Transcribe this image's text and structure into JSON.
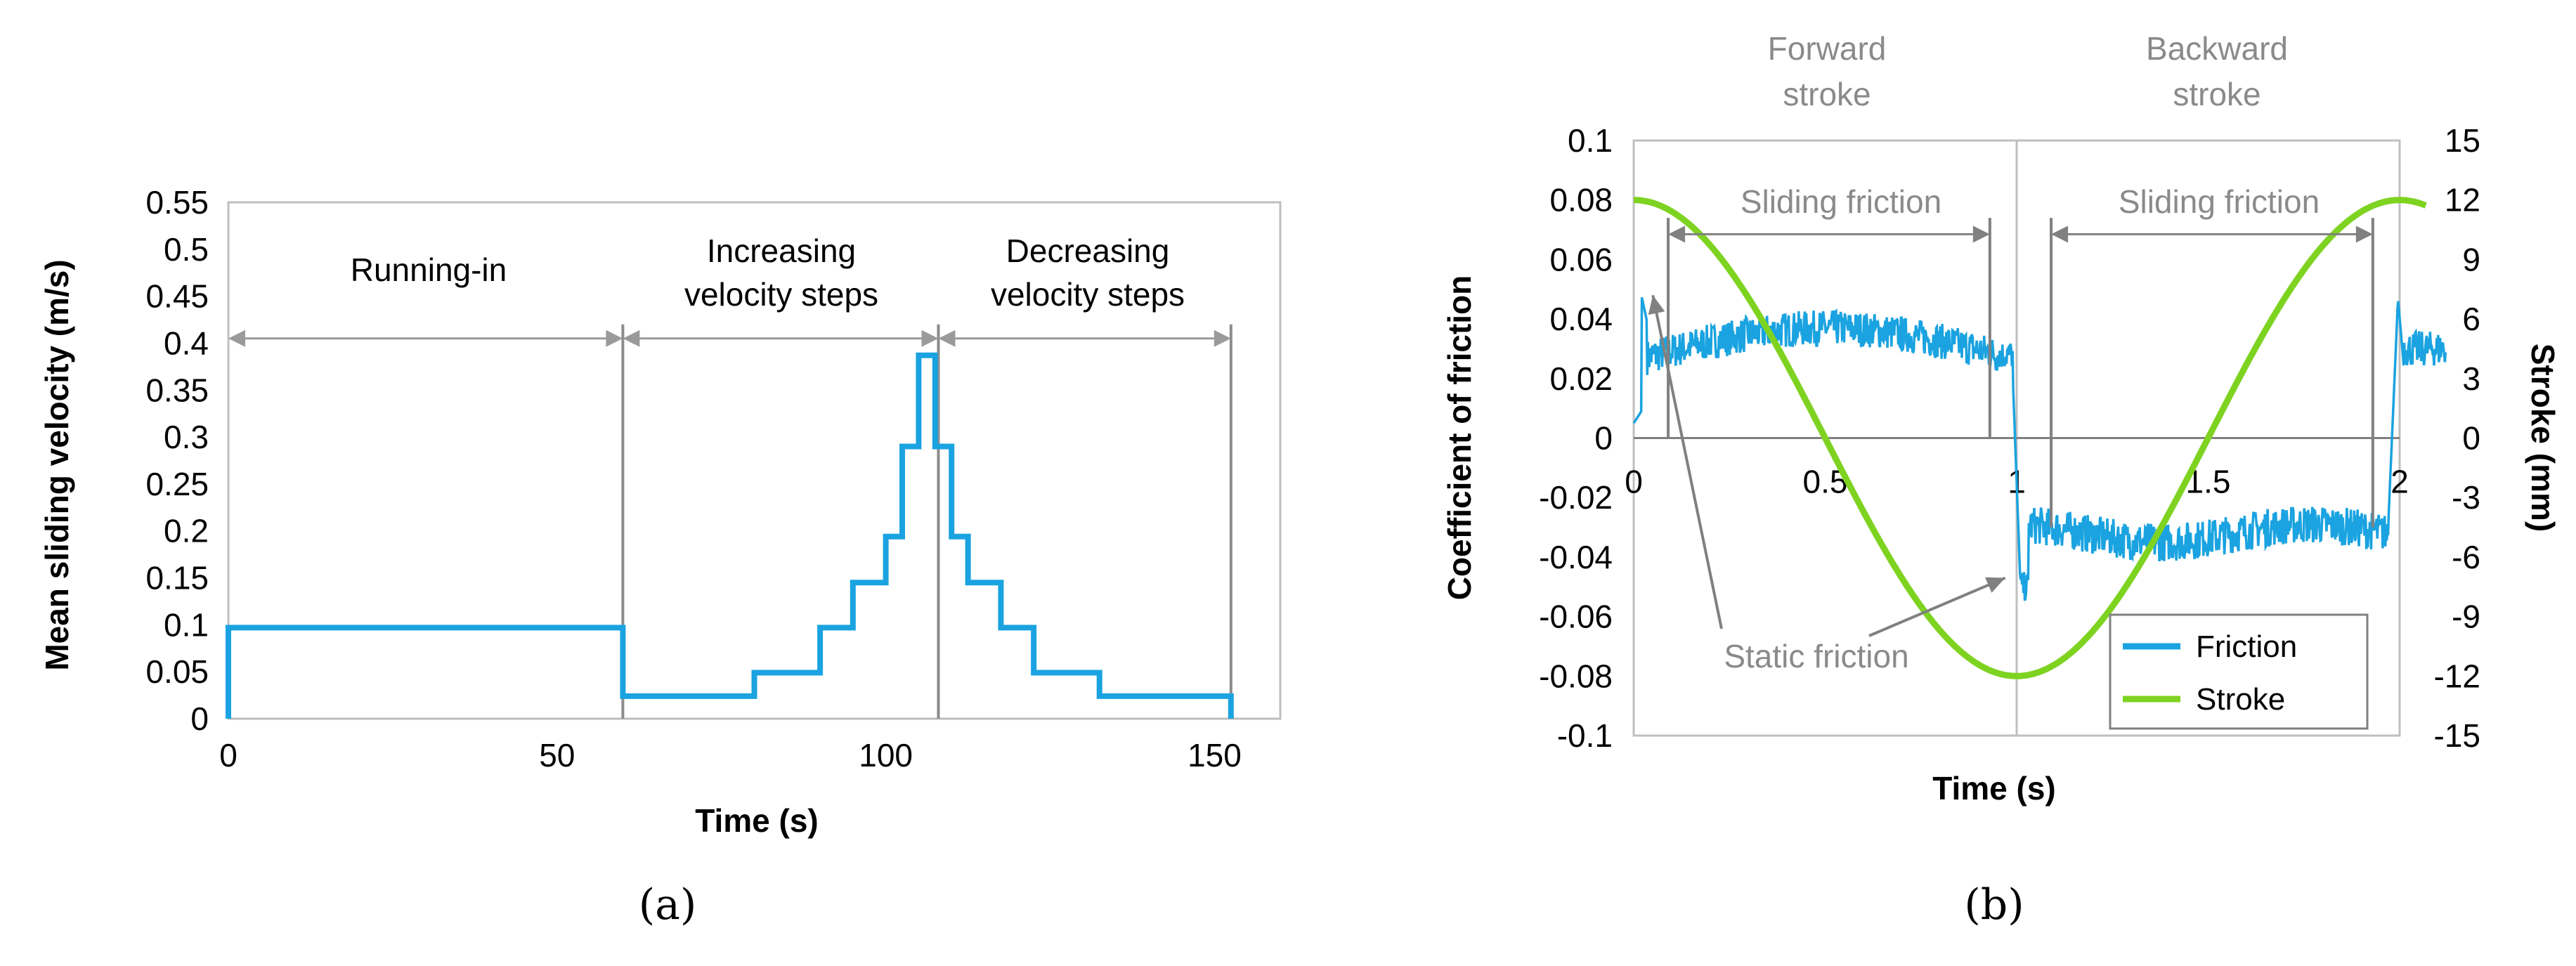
{
  "chart_data": [
    {
      "type": "line",
      "panel_label": "(a)",
      "xlabel": "Time (s)",
      "ylabel": "Mean sliding velocity (m/s)",
      "xlim": [
        0,
        160
      ],
      "ylim": [
        0,
        0.55
      ],
      "x_ticks": [
        "0",
        "50",
        "100",
        "150"
      ],
      "y_ticks": [
        "0",
        "0.05",
        "0.1",
        "0.15",
        "0.2",
        "0.25",
        "0.3",
        "0.35",
        "0.4",
        "0.45",
        "0.5",
        "0.55"
      ],
      "series": [
        {
          "name": "Mean sliding velocity",
          "color": "#1aa3e0",
          "points": [
            [
              0,
              0
            ],
            [
              0,
              0.097
            ],
            [
              60,
              0.097
            ],
            [
              60,
              0.024
            ],
            [
              80,
              0.024
            ],
            [
              80,
              0.049
            ],
            [
              90,
              0.049
            ],
            [
              90,
              0.097
            ],
            [
              95,
              0.097
            ],
            [
              95,
              0.145
            ],
            [
              100,
              0.145
            ],
            [
              100,
              0.194
            ],
            [
              102.5,
              0.194
            ],
            [
              102.5,
              0.29
            ],
            [
              105,
              0.29
            ],
            [
              105,
              0.387
            ],
            [
              107.5,
              0.387
            ],
            [
              107.5,
              0.29
            ],
            [
              110,
              0.29
            ],
            [
              110,
              0.194
            ],
            [
              112.5,
              0.194
            ],
            [
              112.5,
              0.145
            ],
            [
              117.5,
              0.145
            ],
            [
              117.5,
              0.097
            ],
            [
              122.5,
              0.097
            ],
            [
              122.5,
              0.049
            ],
            [
              132.5,
              0.049
            ],
            [
              132.5,
              0.024
            ],
            [
              152.5,
              0.024
            ],
            [
              152.5,
              0
            ]
          ]
        }
      ],
      "phase_dividers_x": [
        60,
        108,
        152.5
      ],
      "phase_arrow_y": 0.405,
      "annotations": {
        "running_in": "Running-in",
        "increasing_1": "Increasing",
        "increasing_2": "velocity steps",
        "decreasing_1": "Decreasing",
        "decreasing_2": "velocity steps"
      }
    },
    {
      "type": "line",
      "panel_label": "(b)",
      "xlabel": "Time (s)",
      "ylabel": "Coefficient of friction",
      "y2label": "Stroke (mm)",
      "xlim": [
        0,
        2
      ],
      "ylim": [
        -0.1,
        0.1
      ],
      "y2lim": [
        -15,
        15
      ],
      "x_ticks": [
        "0",
        "0.5",
        "1",
        "1.5",
        "2"
      ],
      "y_ticks": [
        "-0.1",
        "-0.08",
        "-0.06",
        "-0.04",
        "-0.02",
        "0",
        "0.02",
        "0.04",
        "0.06",
        "0.08",
        "0.1"
      ],
      "y2_ticks": [
        "-15",
        "-12",
        "-9",
        "-6",
        "-3",
        "0",
        "3",
        "6",
        "9",
        "12",
        "15"
      ],
      "series": [
        {
          "name": "Friction",
          "color": "#1aa3e0",
          "description": "noisy ~0.03 during forward stroke, ~-0.03 during backward stroke, peaks ~0.048 / -0.05 at reversals"
        },
        {
          "name": "Stroke",
          "color": "#7ed321",
          "amplitude_mm": 12,
          "period_s": 2
        }
      ],
      "annotations": {
        "forward_1": "Forward",
        "forward_2": "stroke",
        "backward_1": "Backward",
        "backward_2": "stroke",
        "sliding_1": "Sliding friction",
        "sliding_2": "Sliding friction",
        "static": "Static friction"
      },
      "legend": [
        "Friction",
        "Stroke"
      ]
    }
  ]
}
